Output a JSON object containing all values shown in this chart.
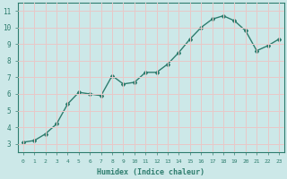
{
  "x_data": [
    0,
    1,
    2,
    3,
    4,
    5,
    6,
    7,
    8,
    9,
    10,
    11,
    12,
    13,
    14,
    15,
    16,
    17,
    18,
    19,
    20,
    21,
    22,
    23
  ],
  "y_data": [
    3.1,
    3.2,
    3.6,
    4.2,
    5.4,
    6.1,
    6.0,
    5.9,
    7.1,
    6.6,
    6.7,
    7.3,
    7.3,
    7.8,
    8.5,
    9.3,
    10.0,
    10.5,
    10.7,
    10.4,
    9.8,
    8.6,
    8.9,
    9.3
  ],
  "xlabel": "Humidex (Indice chaleur)",
  "ylim": [
    2.5,
    11.5
  ],
  "xlim": [
    -0.5,
    23.5
  ],
  "yticks": [
    3,
    4,
    5,
    6,
    7,
    8,
    9,
    10,
    11
  ],
  "xticks": [
    0,
    1,
    2,
    3,
    4,
    5,
    6,
    7,
    8,
    9,
    10,
    11,
    12,
    13,
    14,
    15,
    16,
    17,
    18,
    19,
    20,
    21,
    22,
    23
  ],
  "line_color": "#2e7d6e",
  "bg_color": "#cce8e8",
  "grid_color": "#e8c8c8",
  "tick_color": "#2e7d6e",
  "label_color": "#2e7d6e",
  "marker": "D",
  "marker_size": 2.0,
  "line_width": 1.0
}
